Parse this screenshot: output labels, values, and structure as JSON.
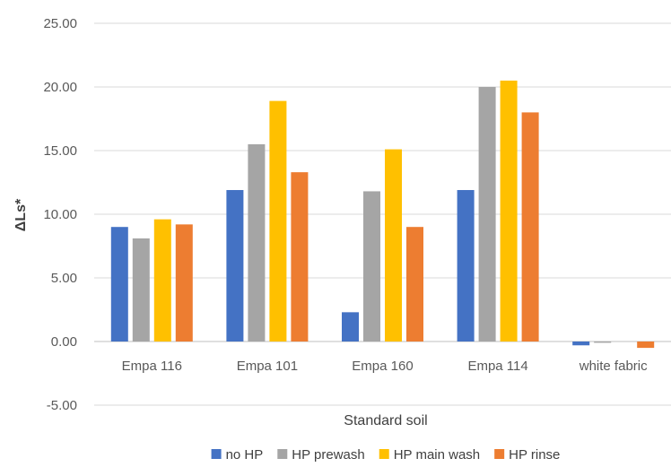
{
  "chart_data": {
    "type": "bar",
    "title": "",
    "xlabel": "Standard soil",
    "ylabel": "ΔLs*",
    "ylim": [
      -5,
      25
    ],
    "yticks": [
      -5,
      0,
      5,
      10,
      15,
      20,
      25
    ],
    "ytick_labels": [
      "-5.00",
      "0.00",
      "5.00",
      "10.00",
      "15.00",
      "20.00",
      "25.00"
    ],
    "grid": true,
    "legend_position": "bottom",
    "categories": [
      "Empa 116",
      "Empa 101",
      "Empa 160",
      "Empa 114",
      "white fabric"
    ],
    "series": [
      {
        "name": "no HP",
        "color": "#4472C4",
        "values": [
          9.0,
          11.9,
          2.3,
          11.9,
          -0.3
        ]
      },
      {
        "name": "HP prewash",
        "color": "#A5A5A5",
        "values": [
          8.1,
          15.5,
          11.8,
          20.0,
          -0.1
        ]
      },
      {
        "name": "HP main wash",
        "color": "#FFC000",
        "values": [
          9.6,
          18.9,
          15.1,
          20.5,
          0.0
        ]
      },
      {
        "name": "HP rinse",
        "color": "#ED7D31",
        "values": [
          9.2,
          13.3,
          9.0,
          18.0,
          -0.5
        ]
      }
    ]
  }
}
